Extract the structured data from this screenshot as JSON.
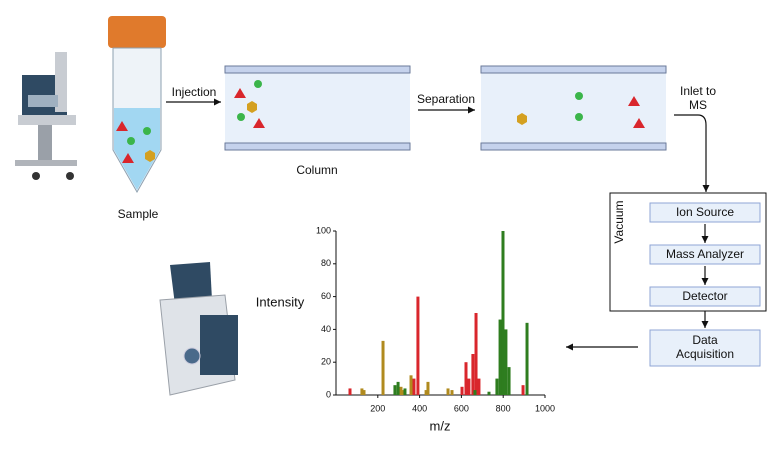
{
  "labels": {
    "sample": "Sample",
    "injection": "Injection",
    "column": "Column",
    "separation": "Separation",
    "inlet": [
      "Inlet to",
      "MS"
    ],
    "vacuum": "Vacuum",
    "steps": [
      "Ion Source",
      "Mass Analyzer",
      "Detector"
    ],
    "acquisition": [
      "Data",
      "Acquisition"
    ]
  },
  "chart_data": {
    "type": "bar",
    "ylabel": "Intensity",
    "xlabel": "m/z",
    "xlim": [
      0,
      1000
    ],
    "ylim": [
      0,
      100
    ],
    "xticks": [
      200,
      400,
      600,
      800,
      1000
    ],
    "yticks": [
      0,
      20,
      40,
      60,
      80,
      100
    ],
    "series": [
      {
        "color": "#d9262c",
        "x": [
          67,
          373,
          392,
          603,
          622,
          636,
          655,
          670,
          684,
          895
        ],
        "values": [
          4,
          10,
          60,
          5,
          20,
          10,
          25,
          50,
          10,
          6
        ]
      },
      {
        "color": "#b08a1e",
        "x": [
          124,
          134,
          225,
          311,
          325,
          359,
          431,
          440,
          536,
          555
        ],
        "values": [
          4,
          3,
          33,
          5,
          3,
          12,
          3,
          8,
          4,
          3
        ]
      },
      {
        "color": "#2e7d1f",
        "x": [
          282,
          297,
          330,
          665,
          732,
          770,
          785,
          799,
          813,
          828,
          914
        ],
        "values": [
          6,
          8,
          4,
          3,
          2,
          10,
          46,
          100,
          40,
          17,
          44
        ]
      }
    ]
  }
}
